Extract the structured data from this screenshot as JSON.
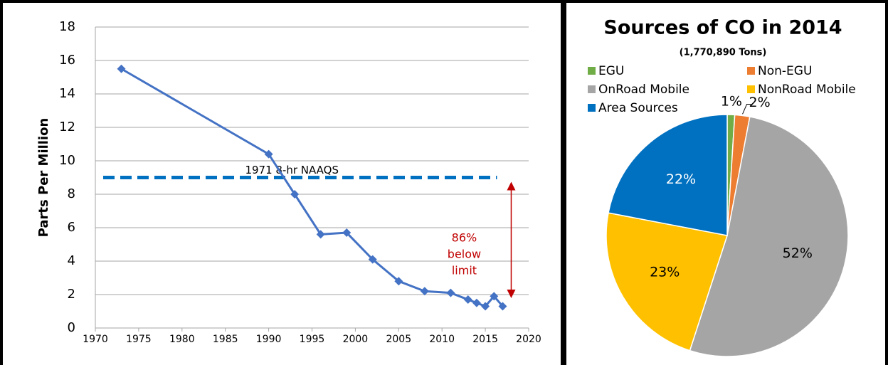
{
  "chart_data": [
    {
      "type": "line",
      "ylabel": "Parts Per Million",
      "x": [
        1973,
        1990,
        1993,
        1996,
        1999,
        2002,
        2005,
        2008,
        2011,
        2013,
        2014,
        2015,
        2016,
        2017
      ],
      "series": [
        {
          "color": "#4472c4",
          "values": [
            15.5,
            10.4,
            8.0,
            5.6,
            5.7,
            4.1,
            2.8,
            2.2,
            2.1,
            1.7,
            1.5,
            1.3,
            1.9,
            1.3
          ]
        }
      ],
      "xlim": [
        1970,
        2020
      ],
      "xticks": [
        1970,
        1975,
        1980,
        1985,
        1990,
        1995,
        2000,
        2005,
        2010,
        2015,
        2020
      ],
      "ylim": [
        0,
        18
      ],
      "yticks": [
        0,
        2,
        4,
        6,
        8,
        10,
        12,
        14,
        16,
        18
      ],
      "grid": true,
      "reference": {
        "label": "1971 8-hr NAAQS",
        "value": 9,
        "color": "#0070c0"
      },
      "annotation": {
        "lines": [
          "86%",
          "below",
          "limit"
        ],
        "color": "#c00000"
      }
    },
    {
      "type": "pie",
      "title": "Sources of CO in 2014",
      "subtitle": "(1,770,890 Tons)",
      "categories": [
        "EGU",
        "Non-EGU",
        "OnRoad Mobile",
        "NonRoad Mobile",
        "Area Sources"
      ],
      "values": [
        1,
        2,
        52,
        23,
        22
      ],
      "value_labels": [
        "1%",
        "2%",
        "52%",
        "23%",
        "22%"
      ],
      "colors": [
        "#70ad47",
        "#ed7d31",
        "#a5a5a5",
        "#ffc000",
        "#0070c0"
      ]
    }
  ]
}
